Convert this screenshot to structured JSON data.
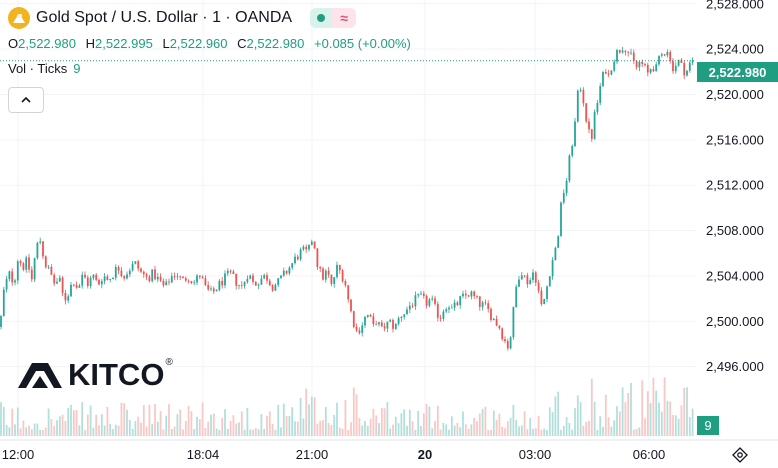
{
  "header": {
    "symbol_icon": "gold-bars-icon",
    "title": "Gold Spot / U.S. Dollar · 1 · OANDA",
    "ohlc": {
      "o_label": "O",
      "o": "2,522.980",
      "h_label": "H",
      "h": "2,522.995",
      "l_label": "L",
      "l": "2,522.960",
      "c_label": "C",
      "c": "2,522.980",
      "change": "+0.085 (+0.00%)"
    },
    "volume_label": "Vol · Ticks",
    "volume_value": "9",
    "collapse_icon": "chevron-up-icon"
  },
  "logo": {
    "text": "KITCO",
    "mark": "®"
  },
  "price_tag": "2,522.980",
  "volume_tag": "9",
  "colors": {
    "up": "#26a69a",
    "down": "#ef5350",
    "accent": "#1f9e82",
    "grid": "#f0f3fa"
  },
  "chart_data": {
    "type": "candlestick",
    "y_axis": {
      "ticks": [
        "2,528.000",
        "2,524.000",
        "2,520.000",
        "2,516.000",
        "2,512.000",
        "2,508.000",
        "2,504.000",
        "2,500.000",
        "2,496.000"
      ],
      "values": [
        2528,
        2524,
        2520,
        2516,
        2512,
        2508,
        2504,
        2500,
        2496
      ],
      "range": [
        2495,
        2529
      ]
    },
    "x_axis": {
      "ticks": [
        "12:00",
        "18:04",
        "21:00",
        "20",
        "03:00",
        "06:00"
      ],
      "bold": [
        false,
        false,
        false,
        true,
        false,
        false
      ]
    },
    "last_price": 2522.98,
    "path": [
      [
        0,
        2499.5
      ],
      [
        4,
        2502.8
      ],
      [
        9,
        2504.2
      ],
      [
        14,
        2503.4
      ],
      [
        18,
        2505.6
      ],
      [
        23,
        2504.8
      ],
      [
        27,
        2505.3
      ],
      [
        32,
        2503.6
      ],
      [
        36,
        2506.5
      ],
      [
        40,
        2507.2
      ],
      [
        45,
        2505.1
      ],
      [
        50,
        2504.3
      ],
      [
        55,
        2503.2
      ],
      [
        59,
        2503.8
      ],
      [
        64,
        2501.8
      ],
      [
        69,
        2502.6
      ],
      [
        73,
        2503.7
      ],
      [
        78,
        2502.9
      ],
      [
        83,
        2504.1
      ],
      [
        88,
        2503.3
      ],
      [
        93,
        2504.0
      ],
      [
        98,
        2503.2
      ],
      [
        103,
        2504.1
      ],
      [
        108,
        2503.6
      ],
      [
        113,
        2504.2
      ],
      [
        118,
        2504.8
      ],
      [
        124,
        2504.0
      ],
      [
        129,
        2504.6
      ],
      [
        135,
        2505.1
      ],
      [
        141,
        2504.3
      ],
      [
        147,
        2503.8
      ],
      [
        153,
        2504.2
      ],
      [
        159,
        2503.6
      ],
      [
        165,
        2502.9
      ],
      [
        170,
        2503.8
      ],
      [
        176,
        2504.3
      ],
      [
        182,
        2503.5
      ],
      [
        188,
        2504.0
      ],
      [
        194,
        2503.4
      ],
      [
        200,
        2504.1
      ],
      [
        206,
        2502.8
      ],
      [
        212,
        2502.4
      ],
      [
        218,
        2503.1
      ],
      [
        224,
        2503.7
      ],
      [
        230,
        2504.2
      ],
      [
        236,
        2503.5
      ],
      [
        242,
        2503.0
      ],
      [
        248,
        2504.3
      ],
      [
        254,
        2503.2
      ],
      [
        260,
        2503.7
      ],
      [
        266,
        2504.0
      ],
      [
        272,
        2503.1
      ],
      [
        278,
        2503.4
      ],
      [
        284,
        2504.1
      ],
      [
        290,
        2504.8
      ],
      [
        296,
        2505.6
      ],
      [
        302,
        2506.2
      ],
      [
        308,
        2506.0
      ],
      [
        313,
        2507.6
      ],
      [
        317,
        2505.2
      ],
      [
        322,
        2503.8
      ],
      [
        327,
        2504.4
      ],
      [
        332,
        2502.9
      ],
      [
        336,
        2504.8
      ],
      [
        341,
        2504.3
      ],
      [
        345,
        2503.5
      ],
      [
        349,
        2501.5
      ],
      [
        353,
        2500.1
      ],
      [
        357,
        2499.0
      ],
      [
        361,
        2499.6
      ],
      [
        365,
        2500.3
      ],
      [
        369,
        2500.6
      ],
      [
        373,
        2499.4
      ],
      [
        377,
        2500.2
      ],
      [
        381,
        2499.1
      ],
      [
        385,
        2499.6
      ],
      [
        390,
        2499.9
      ],
      [
        395,
        2499.4
      ],
      [
        400,
        2500.5
      ],
      [
        405,
        2500.8
      ],
      [
        410,
        2501.4
      ],
      [
        416,
        2501.9
      ],
      [
        421,
        2502.1
      ],
      [
        426,
        2501.6
      ],
      [
        431,
        2501.9
      ],
      [
        436,
        2500.9
      ],
      [
        440,
        2500.3
      ],
      [
        444,
        2501.2
      ],
      [
        448,
        2501.6
      ],
      [
        452,
        2501.0
      ],
      [
        456,
        2501.4
      ],
      [
        460,
        2501.9
      ],
      [
        465,
        2502.2
      ],
      [
        470,
        2502.5
      ],
      [
        475,
        2502.0
      ],
      [
        480,
        2501.5
      ],
      [
        485,
        2501.3
      ],
      [
        490,
        2500.7
      ],
      [
        495,
        2500.0
      ],
      [
        500,
        2499.4
      ],
      [
        504,
        2498.4
      ],
      [
        508,
        2497.8
      ],
      [
        511,
        2498.9
      ],
      [
        514,
        2501.4
      ],
      [
        517,
        2503.6
      ],
      [
        521,
        2504.6
      ],
      [
        525,
        2503.8
      ],
      [
        529,
        2503.4
      ],
      [
        533,
        2504.3
      ],
      [
        537,
        2503.6
      ],
      [
        541,
        2501.2
      ],
      [
        545,
        2502.1
      ],
      [
        549,
        2504.1
      ],
      [
        553,
        2505.6
      ],
      [
        557,
        2506.8
      ],
      [
        561,
        2510.1
      ],
      [
        564,
        2511.6
      ],
      [
        567,
        2512.6
      ],
      [
        570,
        2514.6
      ],
      [
        573,
        2516.2
      ],
      [
        576,
        2518.1
      ],
      [
        579,
        2521.1
      ],
      [
        582,
        2520.3
      ],
      [
        585,
        2518.6
      ],
      [
        588,
        2516.9
      ],
      [
        591,
        2515.8
      ],
      [
        594,
        2517.9
      ],
      [
        597,
        2519.1
      ],
      [
        600,
        2520.6
      ],
      [
        603,
        2521.6
      ],
      [
        606,
        2522.3
      ],
      [
        609,
        2521.5
      ],
      [
        612,
        2522.8
      ],
      [
        616,
        2523.6
      ],
      [
        620,
        2524.0
      ],
      [
        624,
        2524.4
      ],
      [
        628,
        2523.8
      ],
      [
        632,
        2523.1
      ],
      [
        636,
        2522.3
      ],
      [
        640,
        2522.9
      ],
      [
        644,
        2522.4
      ],
      [
        648,
        2521.8
      ],
      [
        652,
        2522.6
      ],
      [
        656,
        2522.2
      ],
      [
        660,
        2523.3
      ],
      [
        664,
        2523.7
      ],
      [
        667,
        2524.2
      ],
      [
        670,
        2522.9
      ],
      [
        674,
        2522.3
      ],
      [
        678,
        2523.0
      ],
      [
        682,
        2522.4
      ],
      [
        686,
        2521.9
      ],
      [
        690,
        2522.7
      ],
      [
        694,
        2522.98
      ]
    ]
  }
}
